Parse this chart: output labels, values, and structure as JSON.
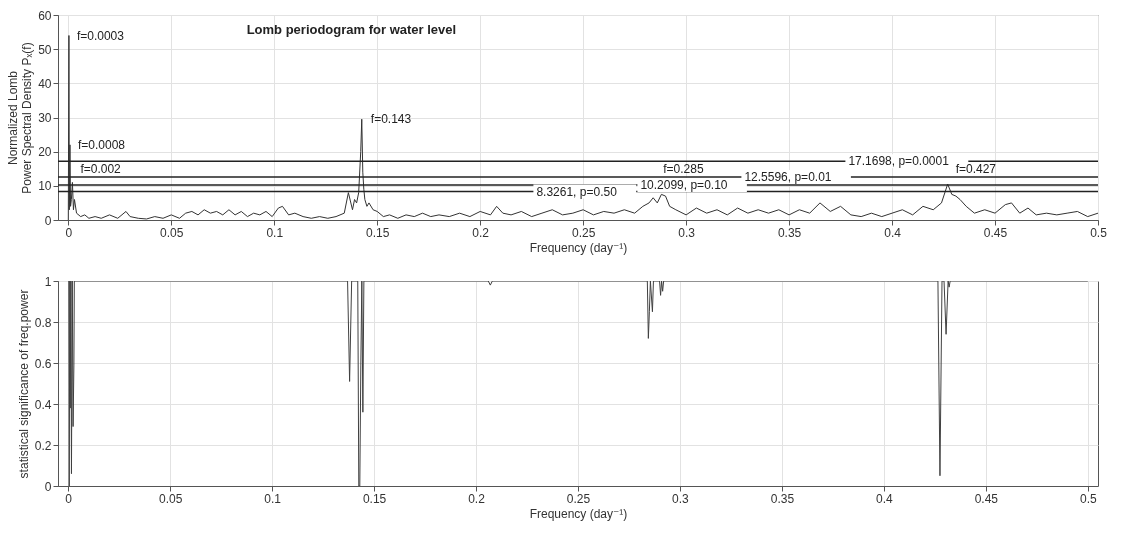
{
  "chart_data": [
    {
      "type": "line",
      "title": "Lomb periodogram for water level",
      "xlabel": "Frequency (day⁻¹)",
      "ylabel": "Normalized Lomb\nPower Spectral Density Pₓ(f)",
      "xlim": [
        -0.005,
        0.5
      ],
      "ylim": [
        0,
        60
      ],
      "xticks": [
        0,
        0.05,
        0.1,
        0.15,
        0.2,
        0.25,
        0.3,
        0.35,
        0.4,
        0.45,
        0.5
      ],
      "yticks": [
        0,
        10,
        20,
        30,
        40,
        50,
        60
      ],
      "grid": true,
      "marker": "none",
      "series": [
        {
          "color": "#333333",
          "x": [
            0,
            0.0003,
            0.0005,
            0.0008,
            0.0011,
            0.0015,
            0.002,
            0.0025,
            0.003,
            0.004,
            0.006,
            0.008,
            0.01,
            0.013,
            0.016,
            0.02,
            0.024,
            0.028,
            0.03,
            0.034,
            0.038,
            0.042,
            0.046,
            0.05,
            0.054,
            0.057,
            0.06,
            0.063,
            0.066,
            0.069,
            0.072,
            0.075,
            0.078,
            0.081,
            0.084,
            0.087,
            0.09,
            0.093,
            0.096,
            0.099,
            0.102,
            0.104,
            0.107,
            0.11,
            0.114,
            0.118,
            0.122,
            0.126,
            0.13,
            0.134,
            0.136,
            0.138,
            0.139,
            0.14,
            0.141,
            0.142,
            0.1425,
            0.143,
            0.1435,
            0.144,
            0.145,
            0.146,
            0.148,
            0.15,
            0.153,
            0.156,
            0.16,
            0.164,
            0.168,
            0.172,
            0.176,
            0.18,
            0.185,
            0.19,
            0.195,
            0.2,
            0.205,
            0.208,
            0.211,
            0.215,
            0.22,
            0.225,
            0.23,
            0.235,
            0.24,
            0.245,
            0.25,
            0.255,
            0.26,
            0.265,
            0.27,
            0.275,
            0.279,
            0.282,
            0.284,
            0.286,
            0.288,
            0.29,
            0.292,
            0.295,
            0.3,
            0.305,
            0.31,
            0.315,
            0.32,
            0.325,
            0.33,
            0.335,
            0.34,
            0.345,
            0.35,
            0.355,
            0.36,
            0.365,
            0.37,
            0.375,
            0.38,
            0.385,
            0.39,
            0.395,
            0.4,
            0.405,
            0.41,
            0.415,
            0.42,
            0.424,
            0.427,
            0.429,
            0.431,
            0.433,
            0.436,
            0.44,
            0.445,
            0.45,
            0.455,
            0.458,
            0.462,
            0.466,
            0.47,
            0.475,
            0.48,
            0.485,
            0.49,
            0.495,
            0.5
          ],
          "values": [
            0,
            54,
            3,
            22,
            4,
            6,
            11,
            3,
            6,
            2,
            1,
            1.5,
            0.5,
            1,
            0.5,
            1.5,
            0.5,
            2.5,
            1,
            0.5,
            0.3,
            1,
            0.5,
            1.5,
            0.5,
            2,
            2.5,
            1.5,
            3,
            2,
            2.5,
            1.5,
            3,
            1.5,
            2.5,
            1,
            2,
            1.5,
            2.5,
            1,
            3.5,
            4,
            1.5,
            2,
            1,
            0.5,
            1,
            0.5,
            1,
            2,
            8,
            3,
            6,
            5,
            8,
            20,
            29.5,
            14,
            9,
            6,
            4,
            5,
            3,
            2.5,
            1,
            1.5,
            0.5,
            1.5,
            1,
            2,
            1,
            1.5,
            1,
            2,
            1,
            2.5,
            1.5,
            4,
            2,
            1.5,
            2.5,
            1,
            2,
            3,
            1.5,
            2,
            3,
            1.5,
            2.5,
            2,
            3,
            2,
            4,
            5,
            6.5,
            5,
            7.5,
            7,
            4,
            3,
            1.5,
            3.5,
            2,
            3,
            1.5,
            3.5,
            2,
            3,
            2,
            3,
            1.5,
            3,
            2,
            5,
            2.5,
            4,
            1.5,
            1,
            2,
            1,
            2,
            3,
            1.5,
            4,
            3,
            5,
            10.5,
            7.5,
            7,
            6,
            4,
            2,
            3,
            2,
            4.5,
            5,
            2,
            3.5,
            1.5,
            2,
            1.5,
            2,
            2.5,
            1,
            2
          ]
        }
      ],
      "ref_lines": [
        {
          "axis": "y",
          "value": 8.3261,
          "label": "8.3261, p=0.50",
          "color": "#222222"
        },
        {
          "axis": "y",
          "value": 10.2099,
          "label": "10.2099, p=0.10",
          "color": "#222222"
        },
        {
          "axis": "y",
          "value": 12.5596,
          "label": "12.5596, p=0.01",
          "color": "#222222"
        },
        {
          "axis": "y",
          "value": 17.1698,
          "label": "17.1698, p=0.0001",
          "color": "#222222"
        }
      ],
      "annotations": [
        {
          "text": "f=0.0003",
          "x": 0.0003,
          "y": 54
        },
        {
          "text": "f=0.0008",
          "x": 0.0008,
          "y": 22
        },
        {
          "text": "f=0.002",
          "x": 0.002,
          "y": 11
        },
        {
          "text": "f=0.143",
          "x": 0.143,
          "y": 29.5
        },
        {
          "text": "f=0.285",
          "x": 0.285,
          "y": 7.5
        },
        {
          "text": "f=0.427",
          "x": 0.427,
          "y": 10.5
        }
      ]
    },
    {
      "type": "line",
      "xlabel": "Frequency (day⁻¹)",
      "ylabel": "statistical significance of freq.power",
      "xlim": [
        -0.005,
        0.505
      ],
      "ylim": [
        0,
        1
      ],
      "xticks": [
        0,
        0.05,
        0.1,
        0.15,
        0.2,
        0.25,
        0.3,
        0.35,
        0.4,
        0.45,
        0.5
      ],
      "yticks": [
        0,
        0.2,
        0.4,
        0.6,
        0.8,
        1
      ],
      "grid": true,
      "marker": "none",
      "series": [
        {
          "color": "#404040",
          "x": [
            0,
            0.0003,
            0.0005,
            0.0008,
            0.001,
            0.0013,
            0.0016,
            0.002,
            0.0024,
            0.0028,
            0.003,
            0.137,
            0.138,
            0.139,
            0.142,
            0.1425,
            0.143,
            0.1435,
            0.144,
            0.1445,
            0.145,
            0.206,
            0.207,
            0.208,
            0.284,
            0.2845,
            0.285,
            0.2855,
            0.2865,
            0.287,
            0.29,
            0.2905,
            0.291,
            0.2915,
            0.292,
            0.4265,
            0.4275,
            0.4285,
            0.4295,
            0.4305,
            0.4315,
            0.432,
            0.4325,
            0.5
          ],
          "values": [
            1,
            1,
            0,
            1,
            0.38,
            1,
            0.06,
            1,
            0.29,
            0.59,
            1,
            1,
            0.51,
            1,
            1,
            0,
            0,
            0.59,
            1,
            0.36,
            1,
            1,
            0.98,
            1,
            1,
            0.72,
            0.85,
            1,
            0.85,
            1,
            1,
            0.93,
            1,
            0.95,
            1,
            1,
            0.05,
            1,
            1,
            0.74,
            1,
            0.97,
            1,
            1
          ]
        }
      ]
    }
  ]
}
